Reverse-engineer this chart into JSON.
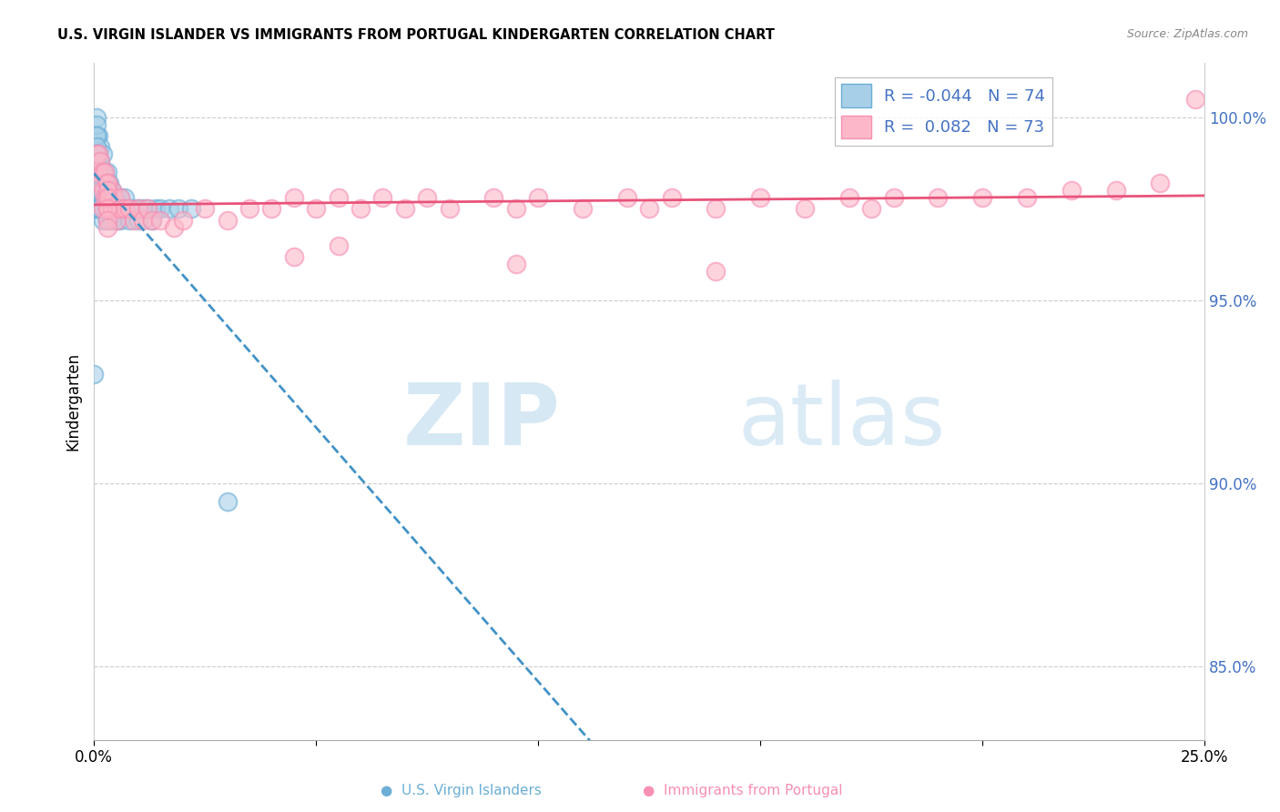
{
  "title": "U.S. VIRGIN ISLANDER VS IMMIGRANTS FROM PORTUGAL KINDERGARTEN CORRELATION CHART",
  "source": "Source: ZipAtlas.com",
  "ylabel": "Kindergarten",
  "y_ticks": [
    85.0,
    90.0,
    95.0,
    100.0
  ],
  "y_tick_labels": [
    "85.0%",
    "90.0%",
    "95.0%",
    "100.0%"
  ],
  "xlim": [
    0.0,
    25.0
  ],
  "ylim": [
    83.0,
    101.5
  ],
  "legend_r1": "R = -0.044",
  "legend_n1": "N = 74",
  "legend_r2": "R =  0.082",
  "legend_n2": "N = 73",
  "color_blue": "#a8cfe8",
  "color_blue_edge": "#6baed6",
  "color_pink": "#fcb8c8",
  "color_pink_edge": "#f78fb3",
  "color_blue_line": "#4292c6",
  "color_pink_line": "#e8537a",
  "series1_x": [
    0.05,
    0.05,
    0.05,
    0.1,
    0.1,
    0.1,
    0.1,
    0.1,
    0.1,
    0.15,
    0.15,
    0.15,
    0.15,
    0.15,
    0.2,
    0.2,
    0.2,
    0.2,
    0.2,
    0.25,
    0.25,
    0.25,
    0.25,
    0.3,
    0.3,
    0.3,
    0.3,
    0.3,
    0.35,
    0.35,
    0.35,
    0.4,
    0.4,
    0.4,
    0.4,
    0.45,
    0.45,
    0.5,
    0.5,
    0.5,
    0.6,
    0.6,
    0.6,
    0.7,
    0.7,
    0.8,
    0.8,
    0.9,
    1.0,
    1.0,
    1.1,
    1.2,
    1.3,
    1.4,
    1.5,
    1.7,
    1.9,
    2.2,
    0.05,
    0.05,
    0.05,
    0.05,
    0.05,
    0.05,
    0.05,
    0.05,
    0.05,
    0.05,
    0.1,
    0.1,
    0.15,
    0.15,
    0.0,
    3.0
  ],
  "series1_y": [
    100.0,
    99.5,
    99.0,
    99.5,
    99.0,
    98.8,
    98.5,
    98.2,
    97.8,
    99.2,
    98.8,
    98.5,
    98.0,
    97.5,
    99.0,
    98.5,
    98.0,
    97.5,
    97.2,
    98.5,
    98.2,
    97.8,
    97.5,
    98.5,
    98.2,
    97.8,
    97.5,
    97.2,
    98.2,
    97.8,
    97.5,
    98.0,
    97.8,
    97.5,
    97.2,
    97.8,
    97.5,
    97.8,
    97.5,
    97.2,
    97.8,
    97.5,
    97.2,
    97.8,
    97.5,
    97.5,
    97.2,
    97.5,
    97.5,
    97.2,
    97.5,
    97.5,
    97.2,
    97.5,
    97.5,
    97.5,
    97.5,
    97.5,
    99.8,
    99.5,
    99.2,
    99.0,
    98.8,
    98.5,
    98.2,
    98.0,
    97.8,
    97.5,
    98.0,
    97.5,
    98.0,
    97.5,
    93.0,
    89.5
  ],
  "series2_x": [
    0.05,
    0.1,
    0.1,
    0.15,
    0.15,
    0.2,
    0.2,
    0.2,
    0.25,
    0.25,
    0.3,
    0.3,
    0.3,
    0.35,
    0.4,
    0.4,
    0.45,
    0.5,
    0.5,
    0.6,
    0.6,
    0.7,
    0.8,
    0.9,
    1.0,
    1.1,
    1.2,
    1.3,
    1.5,
    1.8,
    2.0,
    2.5,
    3.0,
    3.5,
    4.0,
    4.5,
    5.0,
    5.5,
    6.0,
    6.5,
    7.0,
    7.5,
    8.0,
    9.0,
    9.5,
    10.0,
    11.0,
    12.0,
    12.5,
    13.0,
    14.0,
    15.0,
    16.0,
    17.0,
    17.5,
    18.0,
    19.0,
    20.0,
    21.0,
    22.0,
    23.0,
    24.0,
    24.8,
    0.3,
    0.3,
    0.3,
    0.3,
    0.3,
    0.3,
    4.5,
    9.5,
    14.0,
    5.5
  ],
  "series2_y": [
    99.0,
    99.0,
    98.5,
    98.8,
    98.2,
    98.5,
    98.0,
    97.5,
    98.5,
    97.8,
    98.2,
    97.8,
    97.5,
    97.8,
    98.0,
    97.5,
    97.8,
    97.5,
    97.2,
    97.8,
    97.5,
    97.5,
    97.5,
    97.2,
    97.5,
    97.2,
    97.5,
    97.2,
    97.2,
    97.0,
    97.2,
    97.5,
    97.2,
    97.5,
    97.5,
    97.8,
    97.5,
    97.8,
    97.5,
    97.8,
    97.5,
    97.8,
    97.5,
    97.8,
    97.5,
    97.8,
    97.5,
    97.8,
    97.5,
    97.8,
    97.5,
    97.8,
    97.5,
    97.8,
    97.5,
    97.8,
    97.8,
    97.8,
    97.8,
    98.0,
    98.0,
    98.2,
    100.5,
    98.2,
    98.0,
    97.8,
    97.5,
    97.2,
    97.0,
    96.2,
    96.0,
    95.8,
    96.5
  ]
}
